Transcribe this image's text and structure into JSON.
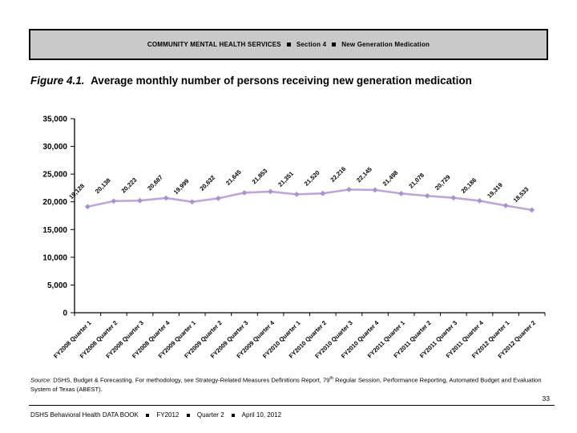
{
  "header": {
    "section_title": "COMMUNITY MENTAL HEALTH SERVICES",
    "section_number": "Section 4",
    "section_topic": "New Generation Medication"
  },
  "title": {
    "figure_label": "Figure 4.1.",
    "text": "Average monthly number of persons receiving new generation medication"
  },
  "chart_data": {
    "type": "line",
    "categories": [
      "FY2008 Quarter 1",
      "FY2008 Quarter 2",
      "FY2008 Quarter 3",
      "FY2008 Quarter 4",
      "FY2009 Quarter 1",
      "FY2009 Quarter 2",
      "FY2009 Quarter 3",
      "FY2009 Quarter 4",
      "FY2010 Quarter 1",
      "FY2010 Quarter 2",
      "FY2010 Quarter 3",
      "FY2010 Quarter 4",
      "FY2011 Quarter 1",
      "FY2011 Quarter 2",
      "FY2011 Quarter 3",
      "FY2011 Quarter 4",
      "FY2012 Quarter 1",
      "FY2012 Quarter 2"
    ],
    "values": [
      19128,
      20138,
      20223,
      20687,
      19999,
      20632,
      21645,
      21853,
      21351,
      21520,
      22216,
      22145,
      21498,
      21078,
      20729,
      20186,
      19319,
      18533
    ],
    "title": "Average monthly number of persons receiving new generation medication",
    "xlabel": "",
    "ylabel": "",
    "ylim": [
      0,
      35000
    ],
    "ytick_step": 5000,
    "grid": false,
    "legend": "none",
    "data_labels": true,
    "line_color": "#bfa5e0",
    "marker_color": "#a98fd4"
  },
  "source_note": {
    "prefix": "Source:",
    "body_before_sup": " DSHS, Budget & Forecasting. For methodology, see Strategy-Related Measures Definitions Report,  79",
    "sup": "th",
    "body_after_sup": " Regular Session, Performance Reporting, Automated Budget and Evaluation System of Texas (ABEST)."
  },
  "page_number": "33",
  "footer": {
    "items": [
      "DSHS Behavioral Health DATA BOOK",
      "FY2012",
      "Quarter 2",
      "April 10, 2012"
    ]
  }
}
